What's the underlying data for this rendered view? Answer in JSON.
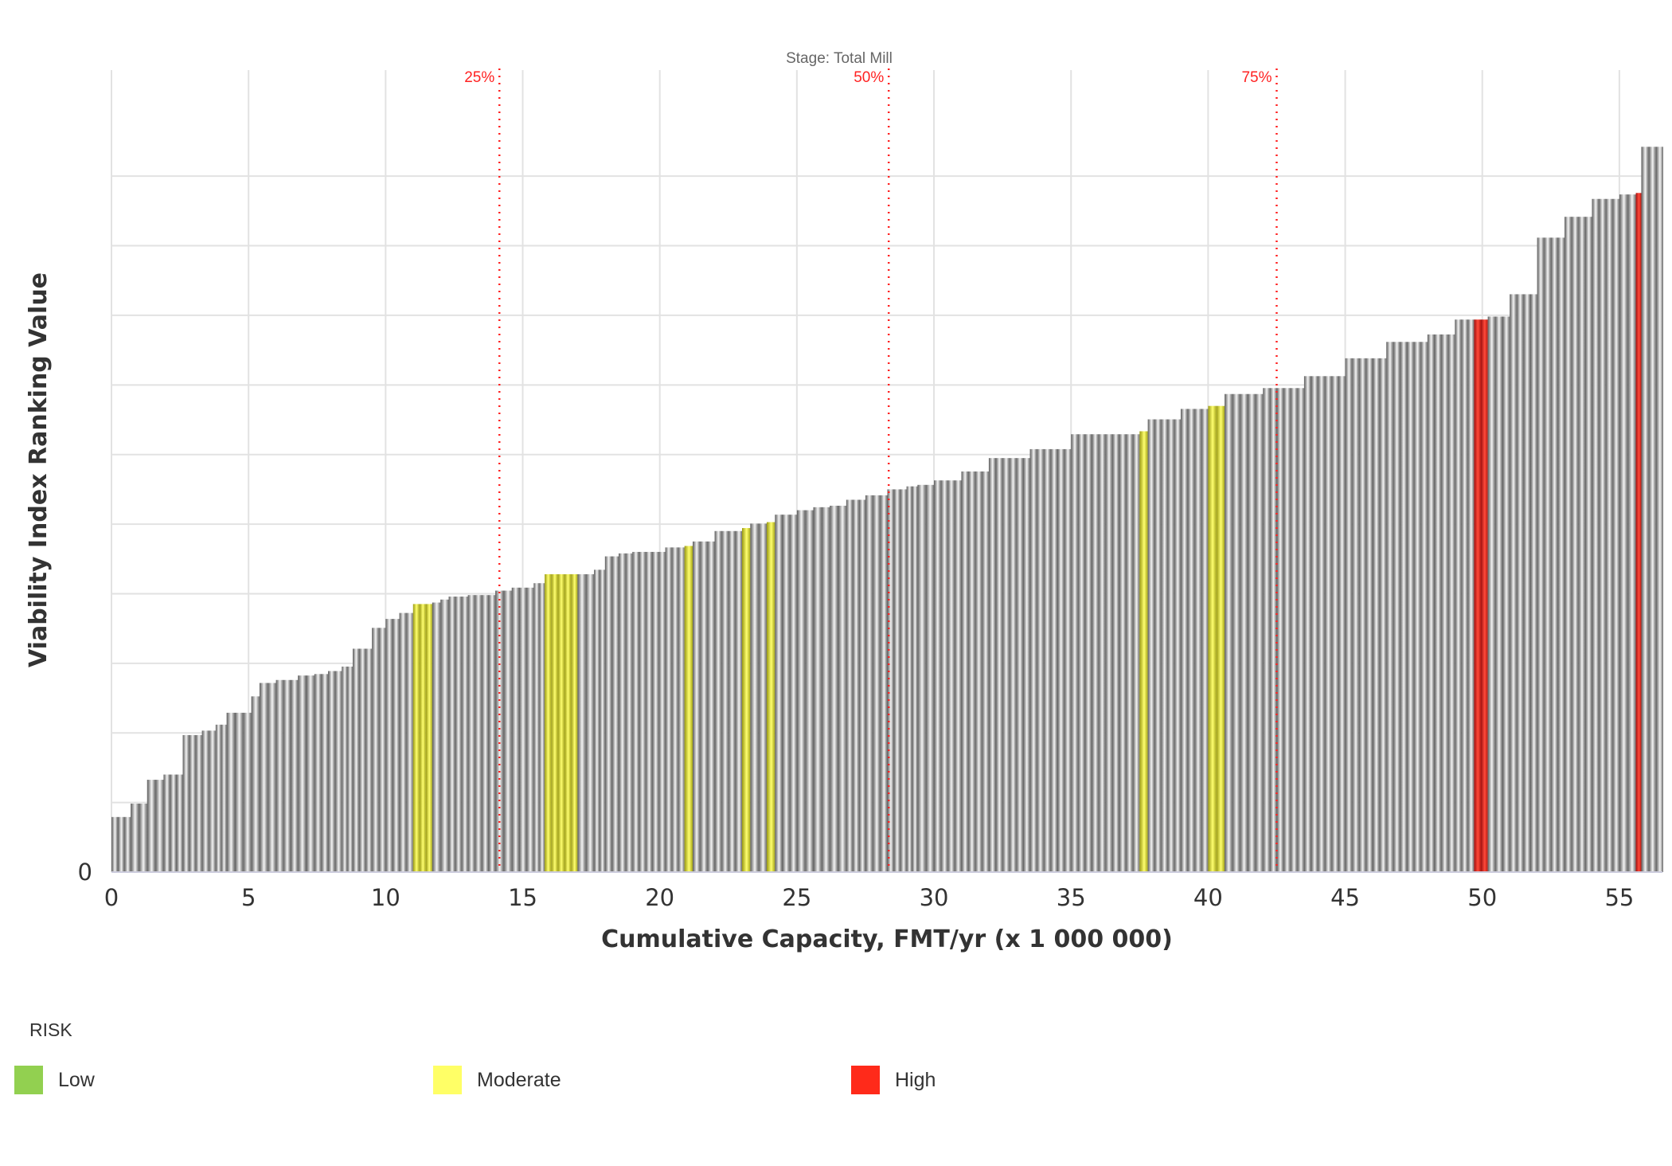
{
  "chart_data": {
    "type": "bar",
    "subtitle": "Stage: Total Mill",
    "xlabel": "Cumulative Capacity, FMT/yr (x 1 000 000)",
    "ylabel": "Viability Index Ranking Value",
    "xlim": [
      0,
      56.6
    ],
    "ylim": [
      0,
      1.0
    ],
    "x_ticks": [
      0,
      5,
      10,
      15,
      20,
      25,
      30,
      35,
      40,
      45,
      50,
      55
    ],
    "y_tick_labels": [
      "0"
    ],
    "grid": true,
    "percentile_lines": [
      {
        "label": "25%",
        "x": 14.15
      },
      {
        "label": "50%",
        "x": 28.35
      },
      {
        "label": "75%",
        "x": 42.5
      }
    ],
    "risk_colors": {
      "none": "#9a9a9a",
      "Low": "#92d050",
      "Moderate": "#ffff66",
      "High": "#ff2a1a"
    },
    "bars": {
      "x_end": [
        0.7,
        1.3,
        1.9,
        2.6,
        3.3,
        3.8,
        4.2,
        5.1,
        5.4,
        6.0,
        6.8,
        7.4,
        7.9,
        8.4,
        8.8,
        9.5,
        10.0,
        10.5,
        11.0,
        11.7,
        12.0,
        12.3,
        13.0,
        14.0,
        14.6,
        15.4,
        15.8,
        17.0,
        17.6,
        18.0,
        18.5,
        19.0,
        20.2,
        20.9,
        21.2,
        22.0,
        23.0,
        23.3,
        23.9,
        24.2,
        25.0,
        25.6,
        26.2,
        26.8,
        27.5,
        28.3,
        29.0,
        29.4,
        30.0,
        31.0,
        32.0,
        33.5,
        35.0,
        36.5,
        37.5,
        37.8,
        39.0,
        40.0,
        40.6,
        42.0,
        43.5,
        45.0,
        46.5,
        48.0,
        49.0,
        49.7,
        50.2,
        51.0,
        52.0,
        53.0,
        54.0,
        55.0,
        55.6,
        55.8,
        56.6
      ],
      "values": [
        0.074,
        0.092,
        0.124,
        0.131,
        0.184,
        0.19,
        0.198,
        0.214,
        0.236,
        0.254,
        0.258,
        0.264,
        0.266,
        0.27,
        0.276,
        0.3,
        0.328,
        0.34,
        0.348,
        0.36,
        0.362,
        0.366,
        0.37,
        0.372,
        0.378,
        0.382,
        0.388,
        0.4,
        0.4,
        0.406,
        0.424,
        0.428,
        0.43,
        0.436,
        0.438,
        0.444,
        0.458,
        0.462,
        0.468,
        0.47,
        0.48,
        0.486,
        0.49,
        0.492,
        0.5,
        0.506,
        0.514,
        0.518,
        0.52,
        0.526,
        0.538,
        0.556,
        0.568,
        0.588,
        0.588,
        0.592,
        0.608,
        0.622,
        0.626,
        0.642,
        0.65,
        0.666,
        0.69,
        0.712,
        0.722,
        0.742,
        0.742,
        0.746,
        0.776,
        0.852,
        0.88,
        0.904,
        0.91,
        0.912,
        0.974
      ],
      "risk": [
        "",
        "",
        "",
        "",
        "",
        "",
        "",
        "",
        "",
        "",
        "",
        "",
        "",
        "",
        "",
        "",
        "",
        "",
        "",
        "Moderate",
        "",
        "",
        "",
        "",
        "",
        "",
        "",
        "Moderate",
        "",
        "",
        "",
        "",
        "",
        "",
        "Moderate",
        "",
        "",
        "Moderate",
        "",
        "Moderate",
        "",
        "",
        "",
        "",
        "",
        "",
        "",
        "",
        "",
        "",
        "",
        "",
        "",
        "",
        "",
        "Moderate",
        "",
        "",
        "Moderate",
        "",
        "",
        "",
        "",
        "",
        "",
        "",
        "High",
        "",
        "",
        "",
        "",
        "",
        "",
        "High",
        ""
      ]
    },
    "legend": {
      "title": "RISK",
      "placement": "bottom-left",
      "items": [
        {
          "label": "Low",
          "color": "#92d050"
        },
        {
          "label": "Moderate",
          "color": "#ffff66"
        },
        {
          "label": "High",
          "color": "#ff2a1a"
        }
      ]
    }
  }
}
